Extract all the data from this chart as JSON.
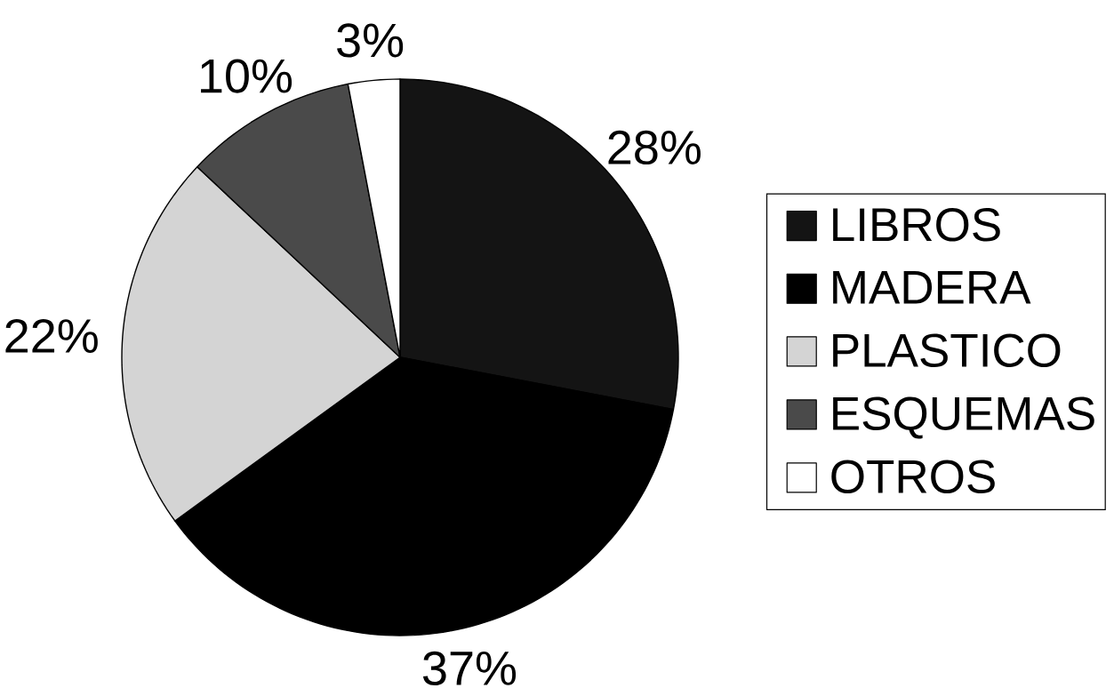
{
  "chart_data": {
    "type": "pie",
    "categories": [
      "LIBROS",
      "MADERA",
      "PLASTICO",
      "ESQUEMAS",
      "OTROS"
    ],
    "values": [
      28,
      37,
      22,
      10,
      3
    ],
    "colors": [
      "#141414",
      "#000000",
      "#d4d4d4",
      "#4a4a4a",
      "#ffffff"
    ],
    "value_labels": [
      "28%",
      "37%",
      "22%",
      "10%",
      "3%"
    ],
    "legend": "right"
  }
}
